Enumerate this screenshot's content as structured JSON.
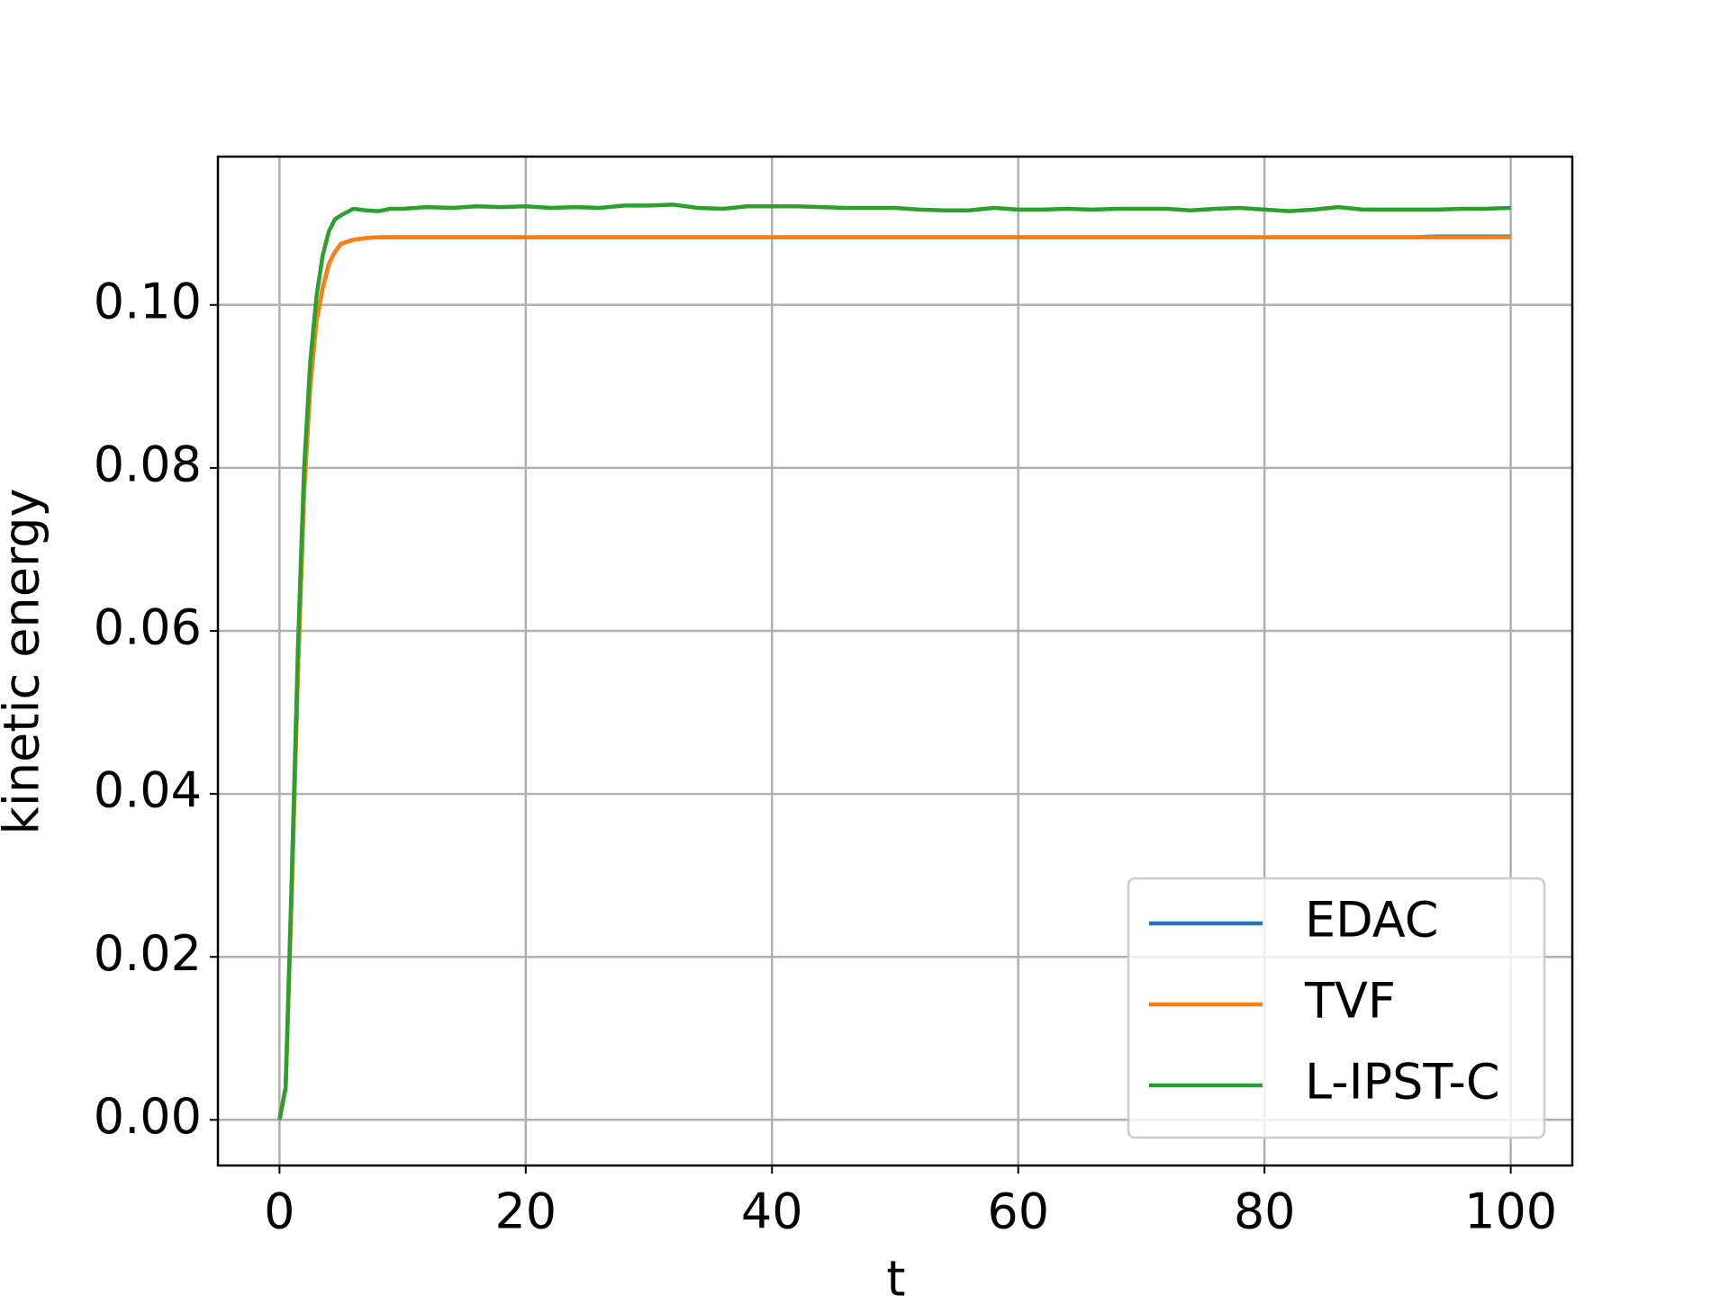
{
  "chart_data": {
    "type": "line",
    "xlabel": "t",
    "ylabel": "kinetic energy",
    "x": [
      0,
      0.5,
      1,
      1.5,
      2,
      2.5,
      3,
      3.5,
      4,
      4.5,
      5,
      6,
      7,
      8,
      9,
      10,
      12,
      14,
      16,
      18,
      20,
      22,
      24,
      26,
      28,
      30,
      32,
      34,
      36,
      38,
      40,
      42,
      44,
      46,
      48,
      50,
      52,
      54,
      56,
      58,
      60,
      62,
      64,
      66,
      68,
      70,
      72,
      74,
      76,
      78,
      80,
      82,
      84,
      86,
      88,
      90,
      92,
      94,
      96,
      98,
      100
    ],
    "series": [
      {
        "name": "EDAC",
        "color": "#1f77b4",
        "values": [
          0,
          0.004,
          0.028,
          0.055,
          0.077,
          0.09,
          0.098,
          0.102,
          0.105,
          0.1065,
          0.1075,
          0.108,
          0.1082,
          0.1083,
          0.1083,
          0.1083,
          0.1083,
          0.1083,
          0.1083,
          0.1083,
          0.1083,
          0.1083,
          0.1083,
          0.1083,
          0.1083,
          0.1083,
          0.1083,
          0.1083,
          0.1083,
          0.1083,
          0.1083,
          0.1083,
          0.1083,
          0.1083,
          0.1083,
          0.1083,
          0.1083,
          0.1083,
          0.1083,
          0.1083,
          0.1083,
          0.1083,
          0.1083,
          0.1083,
          0.1083,
          0.1083,
          0.1083,
          0.1083,
          0.1083,
          0.1083,
          0.1083,
          0.1083,
          0.1083,
          0.1083,
          0.1083,
          0.1083,
          0.1083,
          0.1084,
          0.1084,
          0.1084,
          0.1084
        ]
      },
      {
        "name": "TVF",
        "color": "#ff7f0e",
        "values": [
          0,
          0.004,
          0.028,
          0.055,
          0.077,
          0.09,
          0.098,
          0.102,
          0.105,
          0.1065,
          0.1075,
          0.108,
          0.1082,
          0.1083,
          0.1083,
          0.1083,
          0.1083,
          0.1083,
          0.1083,
          0.1083,
          0.1083,
          0.1083,
          0.1083,
          0.1083,
          0.1083,
          0.1083,
          0.1083,
          0.1083,
          0.1083,
          0.1083,
          0.1083,
          0.1083,
          0.1083,
          0.1083,
          0.1083,
          0.1083,
          0.1083,
          0.1083,
          0.1083,
          0.1083,
          0.1083,
          0.1083,
          0.1083,
          0.1083,
          0.1083,
          0.1083,
          0.1083,
          0.1083,
          0.1083,
          0.1083,
          0.1083,
          0.1083,
          0.1083,
          0.1083,
          0.1083,
          0.1083,
          0.1083,
          0.1083,
          0.1083,
          0.1083,
          0.1083
        ]
      },
      {
        "name": "L-IPST-C",
        "color": "#2ca02c",
        "values": [
          0,
          0.004,
          0.03,
          0.058,
          0.08,
          0.093,
          0.101,
          0.106,
          0.109,
          0.1105,
          0.111,
          0.1118,
          0.1116,
          0.1115,
          0.1118,
          0.1118,
          0.112,
          0.1119,
          0.1121,
          0.112,
          0.1121,
          0.1119,
          0.112,
          0.1119,
          0.1122,
          0.1122,
          0.1123,
          0.1119,
          0.1118,
          0.1121,
          0.1121,
          0.1121,
          0.112,
          0.1119,
          0.1119,
          0.1119,
          0.1117,
          0.1116,
          0.1116,
          0.1119,
          0.1117,
          0.1117,
          0.1118,
          0.1117,
          0.1118,
          0.1118,
          0.1118,
          0.1116,
          0.1118,
          0.1119,
          0.1117,
          0.1115,
          0.1117,
          0.112,
          0.1117,
          0.1117,
          0.1117,
          0.1117,
          0.1118,
          0.1118,
          0.1119
        ]
      }
    ],
    "xlim": [
      -5,
      105
    ],
    "ylim": [
      -0.0056,
      0.1182
    ],
    "xticks": [
      0,
      20,
      40,
      60,
      80,
      100
    ],
    "yticks": [
      {
        "value": 0,
        "label": "0.00"
      },
      {
        "value": 0.02,
        "label": "0.02"
      },
      {
        "value": 0.04,
        "label": "0.04"
      },
      {
        "value": 0.06,
        "label": "0.06"
      },
      {
        "value": 0.08,
        "label": "0.08"
      },
      {
        "value": 0.1,
        "label": "0.10"
      }
    ],
    "grid": true,
    "legend": "lower right"
  }
}
